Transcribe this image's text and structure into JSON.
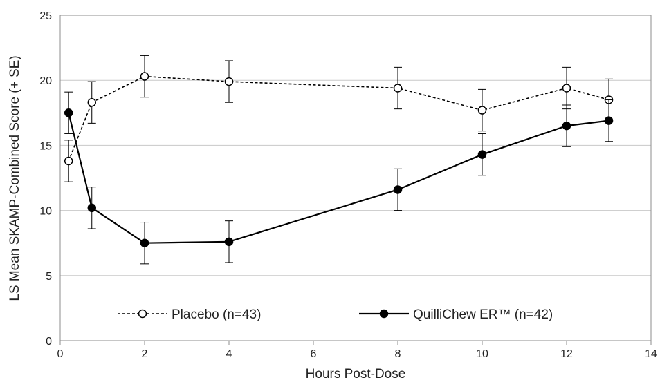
{
  "chart_data": {
    "type": "line",
    "title": "",
    "xlabel": "Hours Post-Dose",
    "ylabel": "LS Mean SKAMP-Combined Score (+ SE)",
    "xlim": [
      0,
      14
    ],
    "ylim": [
      0,
      25
    ],
    "x_ticks": [
      "0",
      "2",
      "4",
      "6",
      "8",
      "10",
      "12",
      "14"
    ],
    "y_ticks": [
      "0",
      "5",
      "10",
      "15",
      "20",
      "25"
    ],
    "grid": "horizontal",
    "legend_position": "bottom-center",
    "series": [
      {
        "name": "Placebo (n=43)",
        "line_style": "dashed",
        "marker": "open-circle",
        "color": "#000000",
        "x": [
          0.2,
          0.75,
          2,
          4,
          8,
          10,
          12,
          13
        ],
        "y": [
          13.8,
          18.3,
          20.3,
          19.9,
          19.4,
          17.7,
          19.4,
          18.5
        ],
        "se": [
          1.6,
          1.6,
          1.6,
          1.6,
          1.6,
          1.6,
          1.6,
          1.6
        ]
      },
      {
        "name": "QuilliChew ER™ (n=42)",
        "line_style": "solid",
        "marker": "filled-circle",
        "color": "#000000",
        "x": [
          0.2,
          0.75,
          2,
          4,
          8,
          10,
          12,
          13
        ],
        "y": [
          17.5,
          10.2,
          7.5,
          7.6,
          11.6,
          14.3,
          16.5,
          16.9
        ],
        "se": [
          1.6,
          1.6,
          1.6,
          1.6,
          1.6,
          1.6,
          1.6,
          1.6
        ]
      }
    ]
  }
}
